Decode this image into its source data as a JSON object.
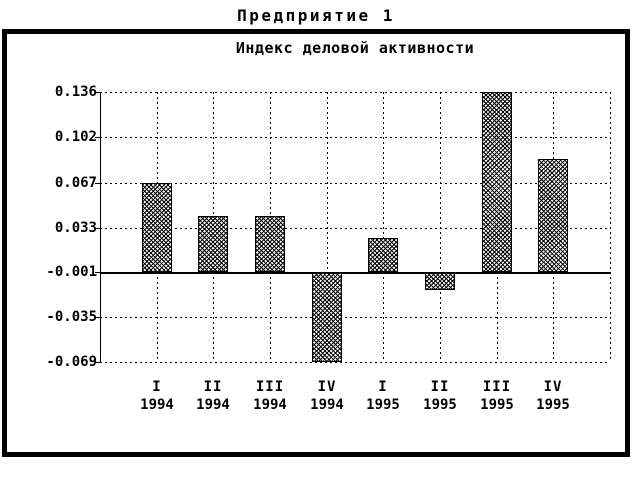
{
  "window": {
    "title": "Предприятие 1"
  },
  "chart_data": {
    "type": "bar",
    "title": "Индекс деловой активности",
    "categories": [
      "I 1994",
      "II 1994",
      "III 1994",
      "IV 1994",
      "I 1995",
      "II 1995",
      "III 1995",
      "IV 1995"
    ],
    "quarters": [
      "I",
      "II",
      "III",
      "IV",
      "I",
      "II",
      "III",
      "IV"
    ],
    "years": [
      "1994",
      "1994",
      "1994",
      "1994",
      "1995",
      "1995",
      "1995",
      "1995"
    ],
    "values": [
      0.067,
      0.042,
      0.042,
      -0.069,
      0.025,
      -0.014,
      0.136,
      0.085
    ],
    "y_tick_labels": [
      "0.136",
      "0.102",
      "0.067",
      "0.033",
      "-0.001",
      "-0.035",
      "-0.069"
    ],
    "y_ticks": [
      0.136,
      0.102,
      0.067,
      0.033,
      -0.001,
      -0.035,
      -0.069
    ],
    "ylim": [
      -0.069,
      0.136
    ],
    "baseline": -0.001,
    "grid": true,
    "legend": "none",
    "bar_fill": "black-crosshatch-pattern",
    "colors": {
      "foreground": "#000000",
      "background": "#ffffff"
    }
  }
}
